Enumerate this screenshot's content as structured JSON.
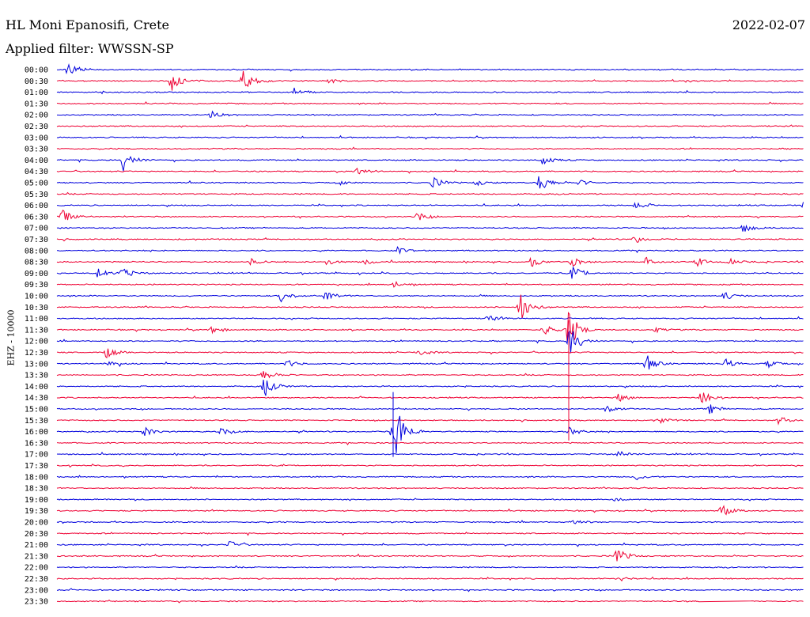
{
  "header": {
    "station": "HL Moni Epanosifi, Crete",
    "filter": "Applied filter: WWSSN-SP",
    "date": "2022-02-07"
  },
  "chart_data": {
    "type": "line",
    "title": "HL Moni Epanosifi, Crete",
    "subtitle": "Applied filter: WWSSN-SP",
    "ylabel": "EHZ - 10000",
    "colors": [
      "#0000dd",
      "#ee0033"
    ],
    "rows": [
      "00:00",
      "00:30",
      "01:00",
      "01:30",
      "02:00",
      "02:30",
      "03:00",
      "03:30",
      "04:00",
      "04:30",
      "05:00",
      "05:30",
      "06:00",
      "06:30",
      "07:00",
      "07:30",
      "08:00",
      "08:30",
      "09:00",
      "09:30",
      "10:00",
      "10:30",
      "11:00",
      "11:30",
      "12:00",
      "12:30",
      "13:00",
      "13:30",
      "14:00",
      "14:30",
      "15:00",
      "15:30",
      "16:00",
      "16:30",
      "17:00",
      "17:30",
      "18:00",
      "18:30",
      "19:00",
      "19:30",
      "20:00",
      "20:30",
      "21:00",
      "21:30",
      "22:00",
      "22:30",
      "23:00",
      "23:30"
    ],
    "events": [
      [
        0,
        14,
        9
      ],
      [
        1,
        145,
        14
      ],
      [
        1,
        235,
        15
      ],
      [
        1,
        345,
        3
      ],
      [
        2,
        300,
        6
      ],
      [
        4,
        195,
        5
      ],
      [
        8,
        84,
        14
      ],
      [
        8,
        612,
        7
      ],
      [
        9,
        380,
        6
      ],
      [
        10,
        355,
        3
      ],
      [
        10,
        475,
        7
      ],
      [
        10,
        530,
        4
      ],
      [
        10,
        610,
        12
      ],
      [
        10,
        660,
        4
      ],
      [
        12,
        730,
        4
      ],
      [
        12,
        944,
        6
      ],
      [
        13,
        5,
        10
      ],
      [
        13,
        455,
        6
      ],
      [
        14,
        868,
        6
      ],
      [
        15,
        730,
        5
      ],
      [
        16,
        430,
        4
      ],
      [
        17,
        245,
        4
      ],
      [
        17,
        340,
        4
      ],
      [
        17,
        390,
        3
      ],
      [
        17,
        600,
        6
      ],
      [
        17,
        650,
        6
      ],
      [
        17,
        745,
        6
      ],
      [
        17,
        808,
        6
      ],
      [
        17,
        850,
        4
      ],
      [
        18,
        52,
        6
      ],
      [
        18,
        83,
        7
      ],
      [
        18,
        652,
        10
      ],
      [
        19,
        427,
        4
      ],
      [
        20,
        283,
        8
      ],
      [
        20,
        340,
        8
      ],
      [
        20,
        843,
        6
      ],
      [
        21,
        585,
        20
      ],
      [
        22,
        545,
        4
      ],
      [
        23,
        195,
        5
      ],
      [
        23,
        615,
        7
      ],
      [
        23,
        645,
        30
      ],
      [
        23,
        755,
        4
      ],
      [
        24,
        648,
        22
      ],
      [
        25,
        62,
        7
      ],
      [
        25,
        455,
        5
      ],
      [
        26,
        63,
        5
      ],
      [
        26,
        290,
        5
      ],
      [
        26,
        745,
        10
      ],
      [
        26,
        845,
        6
      ],
      [
        26,
        898,
        5
      ],
      [
        27,
        260,
        7
      ],
      [
        28,
        262,
        14
      ],
      [
        29,
        710,
        5
      ],
      [
        29,
        815,
        10
      ],
      [
        30,
        695,
        5
      ],
      [
        30,
        825,
        6
      ],
      [
        31,
        760,
        4
      ],
      [
        31,
        912,
        5
      ],
      [
        32,
        110,
        6
      ],
      [
        32,
        208,
        6
      ],
      [
        32,
        425,
        50
      ],
      [
        32,
        648,
        5
      ],
      [
        34,
        710,
        4
      ],
      [
        36,
        732,
        4
      ],
      [
        38,
        705,
        3
      ],
      [
        39,
        840,
        8
      ],
      [
        40,
        650,
        4
      ],
      [
        42,
        218,
        5
      ],
      [
        43,
        708,
        10
      ],
      [
        45,
        710,
        3
      ]
    ],
    "spikes": [
      [
        23,
        647,
        -12,
        140
      ],
      [
        32,
        425,
        -50,
        32
      ]
    ]
  }
}
